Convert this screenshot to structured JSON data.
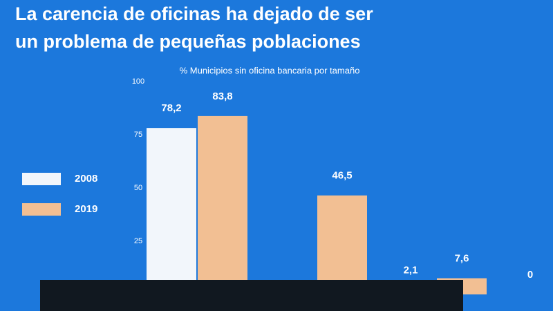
{
  "chart_data": {
    "type": "bar",
    "title": "La carencia de oficinas ha dejado de ser un problema de pequeñas poblaciones",
    "subtitle": "% Municipios sin oficina bancaria por tamaño",
    "categories": [
      null,
      null,
      null,
      null
    ],
    "series": [
      {
        "name": "2008",
        "color": "#f2f6fb",
        "values": [
          78.2,
          null,
          2.1,
          0
        ],
        "value_labels": [
          "78,2",
          null,
          "2,1",
          null
        ]
      },
      {
        "name": "2019",
        "color": "#f2bf93",
        "values": [
          83.8,
          46.5,
          7.6,
          null
        ],
        "value_labels": [
          "83,8",
          "46,5",
          "7,6",
          null
        ]
      }
    ],
    "ylim": [
      0,
      100
    ],
    "yticks": [
      25,
      50,
      75,
      100
    ],
    "grid": false,
    "legend": "left"
  }
}
